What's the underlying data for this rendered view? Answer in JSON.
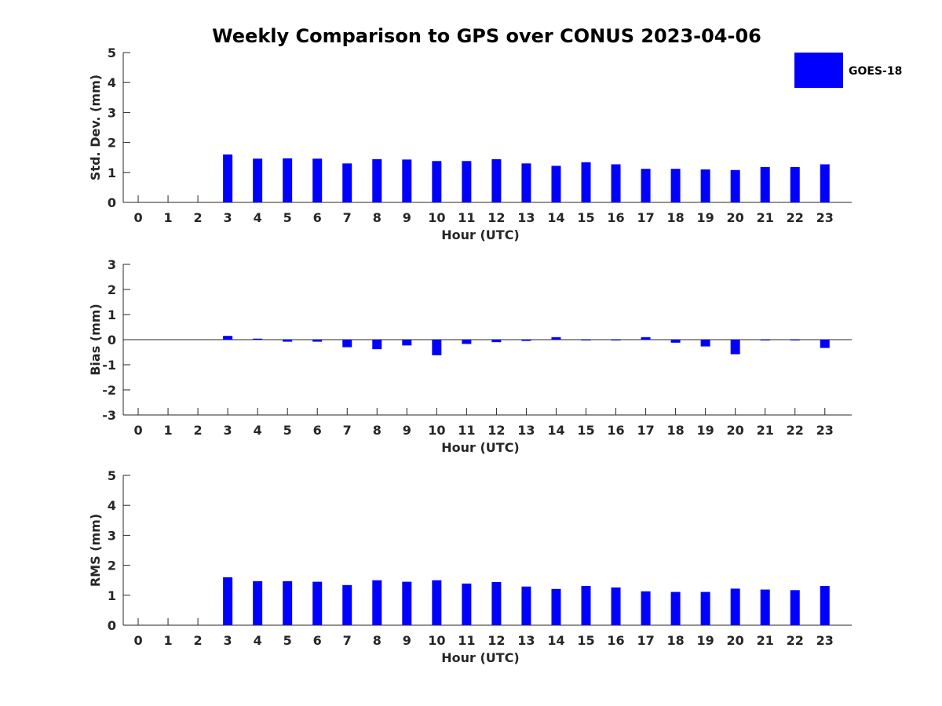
{
  "chart_data": {
    "title": "Weekly Comparison to GPS over CONUS 2023-04-06",
    "legend": {
      "placement": "top-right",
      "entries": [
        "GOES-18"
      ]
    },
    "colors": {
      "series": "#0000ff",
      "axis": "#262626"
    },
    "panels": [
      {
        "type": "bar",
        "xlabel": "Hour (UTC)",
        "ylabel": "Std. Dev. (mm)",
        "ylim": [
          0,
          5
        ],
        "yticks": [
          0,
          1,
          2,
          3,
          4,
          5
        ],
        "categories": [
          0,
          1,
          2,
          3,
          4,
          5,
          6,
          7,
          8,
          9,
          10,
          11,
          12,
          13,
          14,
          15,
          16,
          17,
          18,
          19,
          20,
          21,
          22,
          23
        ],
        "series": [
          {
            "name": "GOES-18",
            "values": [
              null,
              null,
              null,
              1.6,
              1.46,
              1.47,
              1.46,
              1.3,
              1.44,
              1.43,
              1.38,
              1.38,
              1.44,
              1.3,
              1.22,
              1.34,
              1.27,
              1.12,
              1.12,
              1.1,
              1.08,
              1.18,
              1.18,
              1.27
            ]
          }
        ]
      },
      {
        "type": "bar",
        "xlabel": "Hour (UTC)",
        "ylabel": "Bias (mm)",
        "ylim": [
          -3,
          3
        ],
        "yticks": [
          -3,
          -2,
          -1,
          0,
          1,
          2,
          3
        ],
        "categories": [
          0,
          1,
          2,
          3,
          4,
          5,
          6,
          7,
          8,
          9,
          10,
          11,
          12,
          13,
          14,
          15,
          16,
          17,
          18,
          19,
          20,
          21,
          22,
          23
        ],
        "series": [
          {
            "name": "GOES-18",
            "values": [
              null,
              null,
              null,
              0.15,
              0.04,
              -0.08,
              -0.08,
              -0.3,
              -0.38,
              -0.23,
              -0.62,
              -0.17,
              -0.1,
              -0.05,
              0.1,
              -0.02,
              -0.02,
              0.1,
              -0.12,
              -0.27,
              -0.58,
              -0.02,
              -0.02,
              -0.33
            ]
          }
        ]
      },
      {
        "type": "bar",
        "xlabel": "Hour (UTC)",
        "ylabel": "RMS (mm)",
        "ylim": [
          0,
          5
        ],
        "yticks": [
          0,
          1,
          2,
          3,
          4,
          5
        ],
        "categories": [
          0,
          1,
          2,
          3,
          4,
          5,
          6,
          7,
          8,
          9,
          10,
          11,
          12,
          13,
          14,
          15,
          16,
          17,
          18,
          19,
          20,
          21,
          22,
          23
        ],
        "series": [
          {
            "name": "GOES-18",
            "values": [
              null,
              null,
              null,
              1.6,
              1.47,
              1.47,
              1.45,
              1.34,
              1.5,
              1.45,
              1.5,
              1.39,
              1.44,
              1.29,
              1.21,
              1.31,
              1.26,
              1.13,
              1.11,
              1.11,
              1.22,
              1.19,
              1.17,
              1.31
            ]
          }
        ]
      }
    ]
  }
}
